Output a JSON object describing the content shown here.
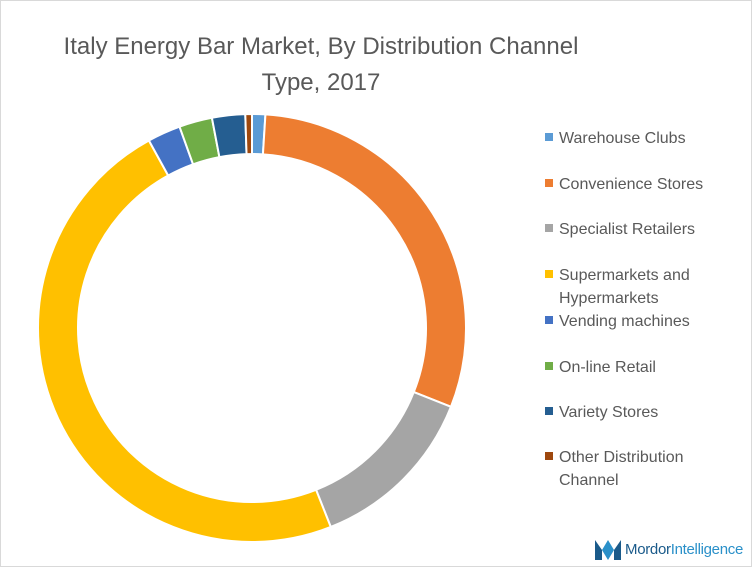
{
  "chart_data": {
    "type": "pie",
    "title": "Italy Energy Bar Market, By Distribution Channel Type, 2017",
    "donut": true,
    "legend_position": "right",
    "slices": [
      {
        "label": "Warehouse Clubs",
        "value": 1.0,
        "color": "#5b9bd5"
      },
      {
        "label": "Convenience Stores",
        "value": 30.0,
        "color": "#ed7d31"
      },
      {
        "label": "Specialist Retailers",
        "value": 13.0,
        "color": "#a5a5a5"
      },
      {
        "label": "Supermarkets and Hypermarkets",
        "value": 48.0,
        "color": "#ffc000"
      },
      {
        "label": "Vending machines",
        "value": 2.5,
        "color": "#4472c4"
      },
      {
        "label": "On-line Retail",
        "value": 2.5,
        "color": "#70ad47"
      },
      {
        "label": "Variety Stores",
        "value": 2.5,
        "color": "#255e91"
      },
      {
        "label": "Other Distribution Channel",
        "value": 0.5,
        "color": "#9e480e"
      }
    ]
  },
  "legend": {
    "items": [
      {
        "lines": [
          "Warehouse Clubs"
        ]
      },
      {
        "lines": [
          "Convenience Stores"
        ]
      },
      {
        "lines": [
          "Specialist Retailers"
        ]
      },
      {
        "lines": [
          "Supermarkets and",
          "Hypermarkets"
        ]
      },
      {
        "lines": [
          "Vending machines"
        ]
      },
      {
        "lines": [
          "On-line Retail"
        ]
      },
      {
        "lines": [
          "Variety Stores"
        ]
      },
      {
        "lines": [
          "Other Distribution",
          "Channel"
        ]
      }
    ]
  },
  "logo": {
    "brand": "Mordor",
    "brand_light": "Intelligence"
  }
}
